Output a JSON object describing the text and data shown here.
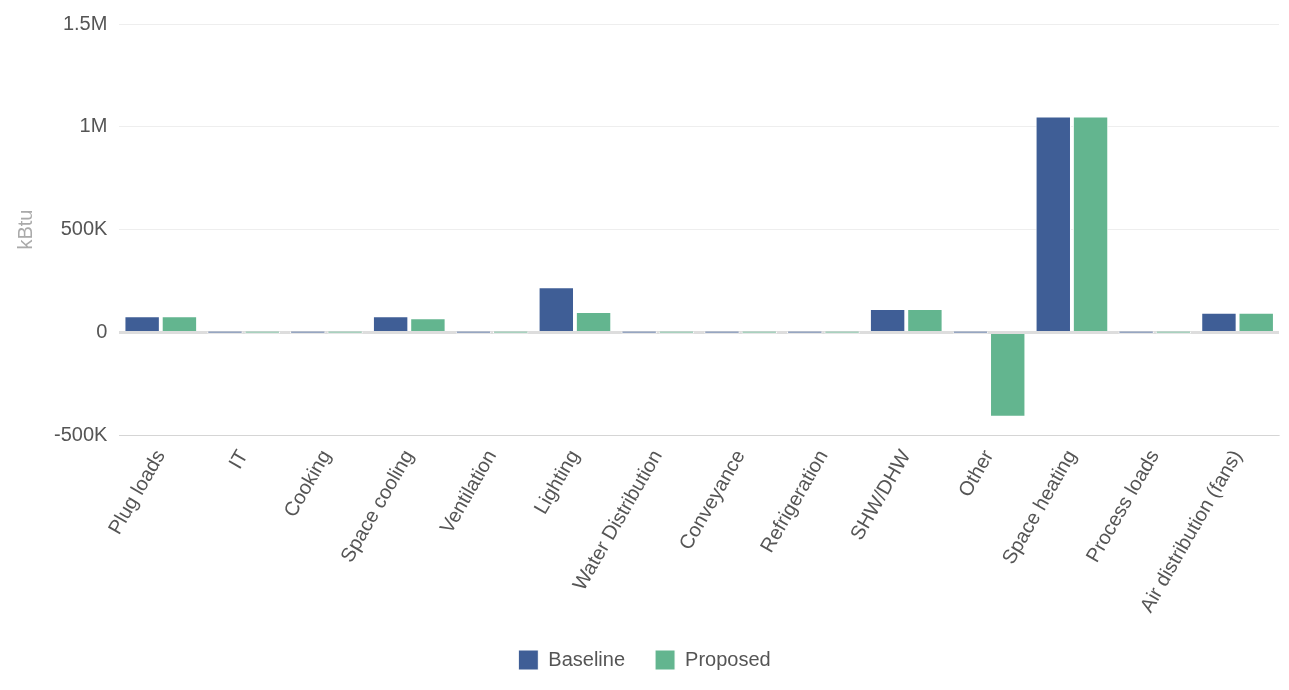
{
  "chart_data": {
    "type": "bar",
    "ylabel": "kBtu",
    "categories": [
      "Plug loads",
      "IT",
      "Cooking",
      "Space cooling",
      "Ventilation",
      "Lighting",
      "Water Distribution",
      "Conveyance",
      "Refrigeration",
      "SHW/DHW",
      "Other",
      "Space heating",
      "Process loads",
      "Air distribution (fans)"
    ],
    "series": [
      {
        "name": "Baseline",
        "color": "#3f5e96",
        "values": [
          79000,
          0,
          0,
          79000,
          0,
          220000,
          0,
          0,
          0,
          114000,
          0,
          1050000,
          0,
          96000
        ]
      },
      {
        "name": "Proposed",
        "color": "#63b58f",
        "values": [
          79000,
          0,
          0,
          69000,
          0,
          99000,
          0,
          0,
          0,
          114000,
          -410000,
          1050000,
          0,
          96000
        ]
      }
    ],
    "ylim": [
      -500000,
      1500000
    ],
    "yticks": [
      {
        "value": -500000,
        "label": "-500K"
      },
      {
        "value": 0,
        "label": "0"
      },
      {
        "value": 500000,
        "label": "500K"
      },
      {
        "value": 1000000,
        "label": "1M"
      },
      {
        "value": 1500000,
        "label": "1.5M"
      }
    ],
    "grid": "y",
    "legend": "bottom"
  }
}
